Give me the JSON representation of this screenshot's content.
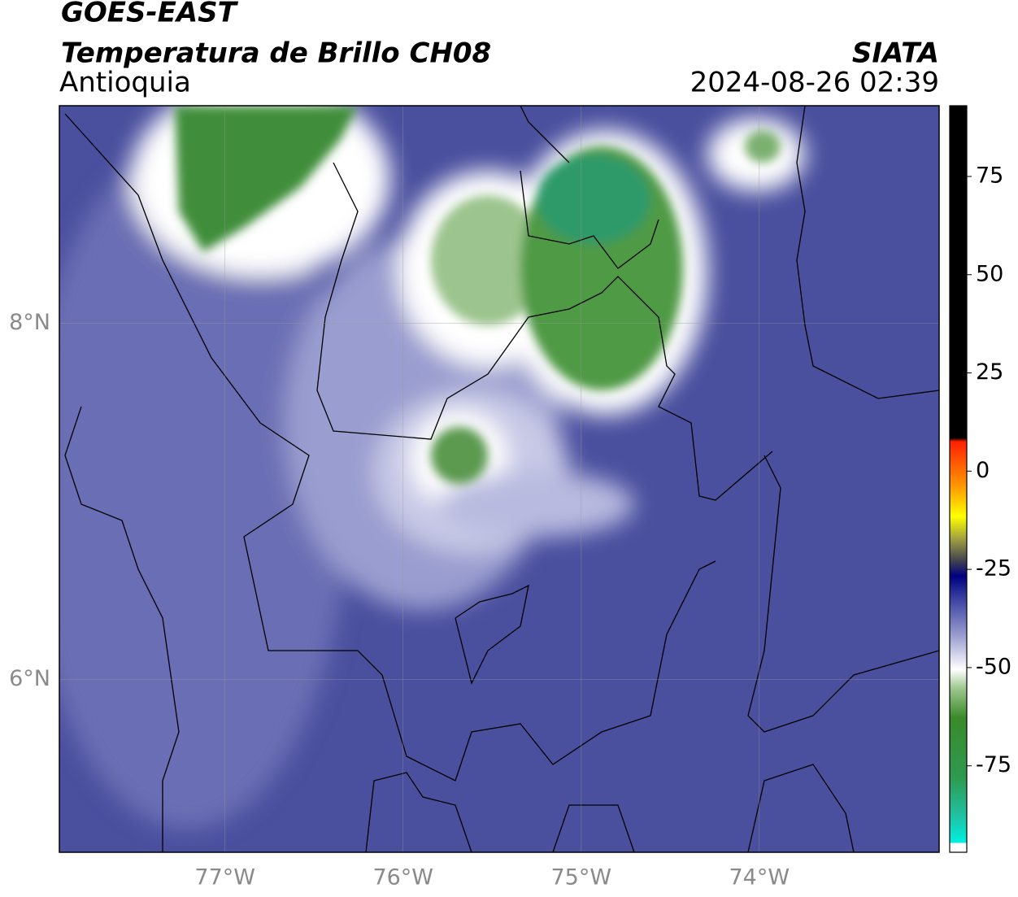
{
  "header": {
    "title": "GOES-EAST",
    "subtitle": "Temperatura de Brillo CH08",
    "region": "Antioquia",
    "source": "SIATA",
    "timestamp": "2024-08-26 02:39"
  },
  "map": {
    "xlim": [
      -77.93,
      -72.99
    ],
    "ylim": [
      5.03,
      9.22
    ],
    "xticks": [
      {
        "value": -77,
        "label": "77°W"
      },
      {
        "value": -76,
        "label": "76°W"
      },
      {
        "value": -75,
        "label": "75°W"
      },
      {
        "value": -74,
        "label": "74°W"
      }
    ],
    "yticks": [
      {
        "value": 8,
        "label": "8°N"
      },
      {
        "value": 6,
        "label": "6°N"
      }
    ]
  },
  "colorbar": {
    "lim": [
      -97,
      93
    ],
    "ticks": [
      75,
      50,
      25,
      0,
      -25,
      -50,
      -75
    ]
  }
}
